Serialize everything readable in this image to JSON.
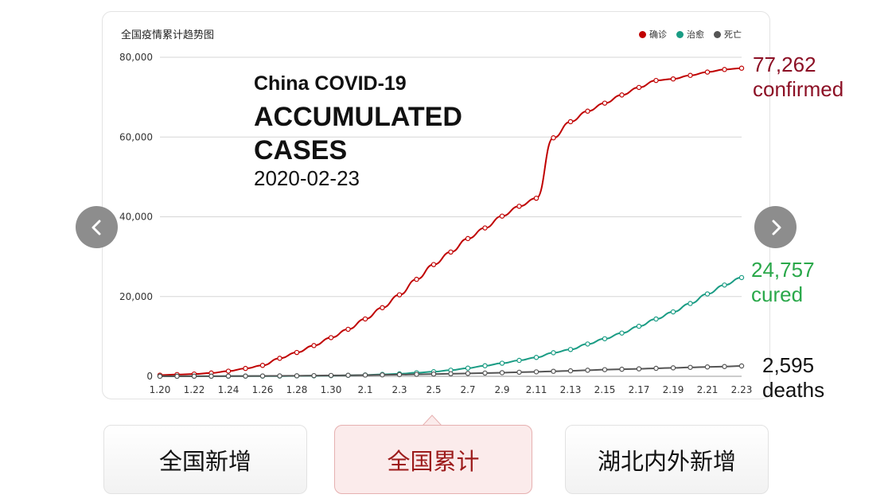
{
  "chart_title": "全国疫情累计趋势图",
  "overlay": {
    "line1": "China COVID-19",
    "line2": "ACCUMULATED CASES",
    "line3": "2020-02-23"
  },
  "end_labels": {
    "confirmed": {
      "value": "77,262",
      "label": "confirmed"
    },
    "cured": {
      "value": "24,757",
      "label": "cured"
    },
    "deaths": {
      "value": "2,595",
      "label": "deaths"
    }
  },
  "tabs": [
    {
      "label": "全国新增",
      "active": false
    },
    {
      "label": "全国累计",
      "active": true
    },
    {
      "label": "湖北内外新增",
      "active": false
    }
  ],
  "nav": {
    "prev_icon": "chevron-left-icon",
    "next_icon": "chevron-right-icon"
  },
  "chart_data": {
    "type": "line",
    "title": "全国疫情累计趋势图",
    "legend_position": "top-right",
    "grid": true,
    "x": [
      "1.20",
      "1.21",
      "1.22",
      "1.23",
      "1.24",
      "1.25",
      "1.26",
      "1.27",
      "1.28",
      "1.29",
      "1.30",
      "1.31",
      "2.1",
      "2.2",
      "2.3",
      "2.4",
      "2.5",
      "2.6",
      "2.7",
      "2.8",
      "2.9",
      "2.10",
      "2.11",
      "2.12",
      "2.13",
      "2.14",
      "2.15",
      "2.16",
      "2.17",
      "2.18",
      "2.19",
      "2.20",
      "2.21",
      "2.22",
      "2.23"
    ],
    "x_tick_labels": [
      "1.20",
      "1.22",
      "1.24",
      "1.26",
      "1.28",
      "1.30",
      "2.1",
      "2.3",
      "2.5",
      "2.7",
      "2.9",
      "2.11",
      "2.13",
      "2.15",
      "2.17",
      "2.19",
      "2.21",
      "2.23"
    ],
    "ylim": [
      0,
      80000
    ],
    "y_ticks": [
      0,
      20000,
      40000,
      60000,
      80000
    ],
    "y_tick_labels": [
      "0",
      "20,000",
      "40,000",
      "60,000",
      "80,000"
    ],
    "series": [
      {
        "name": "确诊",
        "color": "#c00000",
        "values": [
          291,
          440,
          571,
          830,
          1287,
          1975,
          2744,
          4515,
          5974,
          7711,
          9692,
          11791,
          14380,
          17205,
          20438,
          24324,
          28018,
          31161,
          34546,
          37198,
          40171,
          42638,
          44653,
          59804,
          63851,
          66492,
          68500,
          70548,
          72436,
          74185,
          74576,
          75465,
          76288,
          76936,
          77262
        ]
      },
      {
        "name": "治愈",
        "color": "#1a9c84",
        "values": [
          25,
          28,
          28,
          34,
          38,
          49,
          51,
          60,
          103,
          124,
          171,
          243,
          328,
          475,
          632,
          892,
          1153,
          1540,
          2050,
          2649,
          3281,
          3996,
          4740,
          5911,
          6723,
          8096,
          9419,
          10844,
          12552,
          14376,
          16155,
          18264,
          20659,
          22888,
          24757
        ]
      },
      {
        "name": "死亡",
        "color": "#555555",
        "values": [
          6,
          9,
          17,
          25,
          41,
          56,
          80,
          106,
          132,
          170,
          213,
          259,
          304,
          361,
          425,
          490,
          563,
          636,
          722,
          811,
          908,
          1016,
          1113,
          1259,
          1380,
          1523,
          1665,
          1770,
          1868,
          2004,
          2118,
          2236,
          2345,
          2442,
          2595
        ]
      }
    ]
  }
}
